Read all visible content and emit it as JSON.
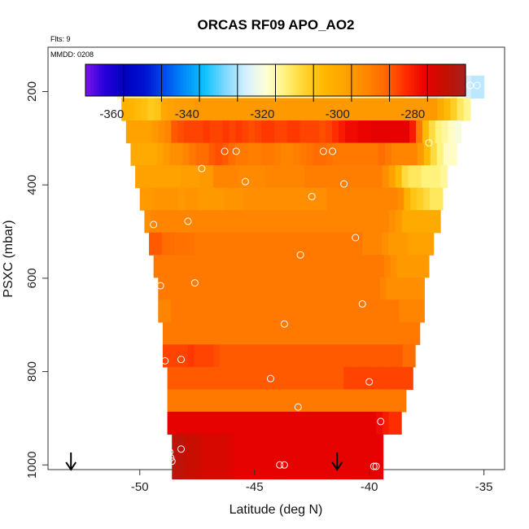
{
  "chart_data": {
    "type": "heatmap",
    "title": "ORCAS RF09 APO_AO2",
    "annotations": {
      "flights": "Flts: 9",
      "date": "MMDD: 0208"
    },
    "xlabel": "Latitude (deg N)",
    "ylabel": "PSXC (mbar)",
    "xlim": [
      -54,
      -34.1
    ],
    "ylim": [
      1010,
      105
    ],
    "x_ticks": [
      -50,
      -45,
      -40,
      -35
    ],
    "y_ticks": [
      200,
      400,
      600,
      800,
      1000
    ],
    "colorbar": {
      "range": [
        -367,
        -266
      ],
      "ticks": [
        -360,
        -340,
        -320,
        -300,
        -280
      ],
      "colors": [
        "#7a14e8",
        "#2400d8",
        "#0000c0",
        "#0014d2",
        "#0050f0",
        "#0090fa",
        "#10c4ff",
        "#80d8ff",
        "#d4efff",
        "#ffffd8",
        "#fff27a",
        "#ffd22a",
        "#ffb600",
        "#ffa200",
        "#ff8800",
        "#ff6800",
        "#ff2c00",
        "#ea0000",
        "#c21000",
        "#a82020"
      ],
      "separator_count": 10
    },
    "bands": [
      {
        "p": 190,
        "lat_min": -51,
        "lat_max": -35,
        "values": [
          -316,
          -316,
          -316,
          -316,
          -316,
          -316,
          -316,
          -316,
          -316,
          -316,
          -316,
          -316,
          -316,
          -316,
          -316,
          -316,
          -316,
          -316,
          -316,
          -316,
          -316,
          -316,
          -316,
          -316,
          -316,
          -316,
          -316,
          -316,
          -316,
          -316,
          -316,
          -316,
          -316,
          -316,
          -316,
          -316,
          -316,
          -316,
          -316,
          -316,
          -316,
          -316,
          -316,
          -316,
          -318,
          -320,
          -322,
          -324,
          -324,
          -322,
          -318,
          -316,
          -320,
          -324,
          -326,
          -326
        ]
      },
      {
        "p": 238,
        "lat_min": -50.8,
        "lat_max": -35.6,
        "values": [
          -302,
          -303,
          -304,
          -305,
          -307,
          -306,
          -299,
          -298,
          -297,
          -297,
          -297,
          -296,
          -296,
          -296,
          -296,
          -296,
          -296,
          -296,
          -296,
          -296,
          -296,
          -296,
          -296,
          -296,
          -296,
          -296,
          -296,
          -296,
          -296,
          -296,
          -296,
          -296,
          -296,
          -296,
          -296,
          -296,
          -296,
          -296,
          -296,
          -296,
          -296,
          -296,
          -296,
          -296,
          -296,
          -296,
          -296,
          -296,
          -300,
          -304,
          -308,
          -312,
          -315
        ]
      },
      {
        "p": 286,
        "lat_min": -50.6,
        "lat_max": -36,
        "values": [
          -298,
          -298,
          -298,
          -298,
          -296,
          -294,
          -292,
          -286,
          -285,
          -284,
          -284,
          -284,
          -283,
          -284,
          -284,
          -283,
          -284,
          -283,
          -284,
          -285,
          -284,
          -283,
          -283,
          -284,
          -284,
          -283,
          -283,
          -284,
          -284,
          -284,
          -285,
          -284,
          -282,
          -280,
          -278,
          -278,
          -277,
          -277,
          -276,
          -276,
          -276,
          -276,
          -276,
          -276,
          -280,
          -290,
          -304,
          -310,
          -314,
          -316,
          -318,
          -320
        ]
      },
      {
        "p": 334,
        "lat_min": -50.4,
        "lat_max": -36.2,
        "values": [
          -300,
          -300,
          -300,
          -300,
          -298,
          -296,
          -294,
          -294,
          -292,
          -290,
          -288,
          -288,
          -286,
          -285,
          -286,
          -288,
          -290,
          -290,
          -291,
          -291,
          -290,
          -290,
          -291,
          -292,
          -292,
          -291,
          -290,
          -289,
          -288,
          -288,
          -289,
          -290,
          -290,
          -290,
          -290,
          -290,
          -290,
          -290,
          -288,
          -290,
          -292,
          -292,
          -292,
          -292,
          -296,
          -304,
          -310,
          -314,
          -318,
          -318
        ]
      },
      {
        "p": 382,
        "lat_min": -50.2,
        "lat_max": -36.6,
        "values": [
          -298,
          -298,
          -298,
          -298,
          -298,
          -298,
          -298,
          -297,
          -297,
          -297,
          -296,
          -296,
          -292,
          -292,
          -292,
          -292,
          -293,
          -293,
          -293,
          -293,
          -292,
          -292,
          -292,
          -292,
          -292,
          -292,
          -291,
          -291,
          -291,
          -291,
          -291,
          -291,
          -291,
          -291,
          -291,
          -291,
          -291,
          -291,
          -294,
          -298,
          -304,
          -310,
          -312,
          -312,
          -314,
          -314,
          -314,
          -316
        ]
      },
      {
        "p": 430,
        "lat_min": -50,
        "lat_max": -36.8,
        "values": [
          -296,
          -296,
          -295,
          -295,
          -295,
          -295,
          -296,
          -295,
          -295,
          -296,
          -296,
          -296,
          -296,
          -295,
          -295,
          -295,
          -294,
          -294,
          -294,
          -294,
          -294,
          -294,
          -294,
          -294,
          -294,
          -294,
          -294,
          -294,
          -294,
          -292,
          -292,
          -292,
          -292,
          -292,
          -292,
          -292,
          -292,
          -292,
          -292,
          -292,
          -294,
          -302,
          -306,
          -308,
          -310,
          -312,
          -312
        ]
      },
      {
        "p": 478,
        "lat_min": -49.8,
        "lat_max": -36.9,
        "values": [
          -294,
          -292,
          -292,
          -292,
          -292,
          -292,
          -292,
          -292,
          -292,
          -292,
          -292,
          -292,
          -292,
          -292,
          -292,
          -292,
          -292,
          -292,
          -292,
          -292,
          -292,
          -292,
          -292,
          -292,
          -292,
          -292,
          -292,
          -292,
          -292,
          -292,
          -292,
          -292,
          -292,
          -292,
          -292,
          -292,
          -292,
          -292,
          -294,
          -296,
          -300,
          -300,
          -300,
          -300,
          -300,
          -300
        ]
      },
      {
        "p": 526,
        "lat_min": -49.6,
        "lat_max": -37.2,
        "values": [
          -286,
          -286,
          -288,
          -288,
          -289,
          -289,
          -289,
          -290,
          -290,
          -290,
          -290,
          -290,
          -290,
          -290,
          -290,
          -290,
          -290,
          -290,
          -290,
          -290,
          -290,
          -290,
          -290,
          -290,
          -290,
          -290,
          -290,
          -290,
          -290,
          -290,
          -290,
          -290,
          -290,
          -292,
          -292,
          -292,
          -294,
          -296,
          -296,
          -296,
          -298,
          -298,
          -298,
          -298
        ]
      },
      {
        "p": 574,
        "lat_min": -49.4,
        "lat_max": -37.4,
        "values": [
          -290,
          -290,
          -290,
          -290,
          -290,
          -290,
          -290,
          -290,
          -290,
          -290,
          -290,
          -290,
          -290,
          -290,
          -290,
          -290,
          -290,
          -290,
          -290,
          -290,
          -290,
          -290,
          -290,
          -290,
          -290,
          -290,
          -290,
          -290,
          -290,
          -290,
          -290,
          -290,
          -290,
          -290,
          -290,
          -290,
          -292,
          -294,
          -296,
          -296,
          -296,
          -296,
          -296
        ]
      },
      {
        "p": 622,
        "lat_min": -49.2,
        "lat_max": -37.6,
        "values": [
          -290,
          -290,
          -290,
          -290,
          -290,
          -290,
          -290,
          -290,
          -290,
          -290,
          -290,
          -290,
          -290,
          -290,
          -290,
          -290,
          -290,
          -290,
          -290,
          -290,
          -290,
          -290,
          -290,
          -290,
          -290,
          -290,
          -290,
          -290,
          -290,
          -290,
          -290,
          -290,
          -290,
          -290,
          -290,
          -292,
          -294,
          -294,
          -294,
          -294,
          -294,
          -294
        ]
      },
      {
        "p": 670,
        "lat_min": -49.2,
        "lat_max": -37.6,
        "values": [
          -292,
          -292,
          -290,
          -290,
          -290,
          -290,
          -290,
          -290,
          -290,
          -290,
          -290,
          -290,
          -290,
          -290,
          -290,
          -290,
          -290,
          -290,
          -290,
          -290,
          -290,
          -290,
          -290,
          -290,
          -290,
          -290,
          -290,
          -290,
          -290,
          -290,
          -290,
          -290,
          -290,
          -290,
          -290,
          -290,
          -290,
          -290,
          -292,
          -292,
          -292,
          -292
        ]
      },
      {
        "p": 718,
        "lat_min": -49,
        "lat_max": -37.8,
        "values": [
          -290,
          -290,
          -290,
          -290,
          -290,
          -290,
          -290,
          -290,
          -290,
          -290,
          -290,
          -290,
          -290,
          -290,
          -290,
          -290,
          -290,
          -290,
          -290,
          -290,
          -290,
          -290,
          -290,
          -290,
          -290,
          -290,
          -290,
          -290,
          -290,
          -290,
          -290,
          -290,
          -290,
          -290,
          -290,
          -290,
          -290,
          -290,
          -290,
          -290
        ]
      },
      {
        "p": 766,
        "lat_min": -49,
        "lat_max": -38,
        "values": [
          -284,
          -284,
          -284,
          -284,
          -283,
          -284,
          -284,
          -284,
          -285,
          -286,
          -286,
          -286,
          -286,
          -286,
          -286,
          -286,
          -286,
          -286,
          -286,
          -286,
          -286,
          -286,
          -286,
          -286,
          -286,
          -286,
          -286,
          -286,
          -286,
          -286,
          -286,
          -286,
          -286,
          -286,
          -286,
          -286,
          -286,
          -286,
          -288,
          -288
        ]
      },
      {
        "p": 814,
        "lat_min": -48.8,
        "lat_max": -38.1,
        "values": [
          -286,
          -286,
          -286,
          -286,
          -286,
          -286,
          -286,
          -286,
          -286,
          -286,
          -286,
          -286,
          -286,
          -286,
          -286,
          -286,
          -286,
          -286,
          -286,
          -286,
          -286,
          -286,
          -286,
          -286,
          -286,
          -286,
          -286,
          -286,
          -284,
          -284,
          -284,
          -284,
          -284,
          -284,
          -284,
          -284,
          -284,
          -284,
          -284
        ]
      },
      {
        "p": 862,
        "lat_min": -48.8,
        "lat_max": -38.4,
        "values": [
          -290,
          -290,
          -290,
          -290,
          -290,
          -290,
          -290,
          -290,
          -290,
          -290,
          -290,
          -290,
          -290,
          -290,
          -290,
          -290,
          -290,
          -290,
          -290,
          -290,
          -290,
          -290,
          -290,
          -290,
          -290,
          -290,
          -290,
          -290,
          -290,
          -290,
          -290,
          -290,
          -290,
          -290,
          -290,
          -290,
          -290,
          -290
        ]
      },
      {
        "p": 910,
        "lat_min": -48.8,
        "lat_max": -38.6,
        "values": [
          -276,
          -276,
          -276,
          -276,
          -276,
          -276,
          -276,
          -276,
          -276,
          -276,
          -276,
          -276,
          -276,
          -276,
          -276,
          -276,
          -276,
          -276,
          -276,
          -276,
          -276,
          -276,
          -276,
          -276,
          -276,
          -276,
          -276,
          -276,
          -276,
          -276,
          -276,
          -276,
          -276,
          -278,
          -280,
          -282,
          -282
        ]
      },
      {
        "p": 958,
        "lat_min": -48.6,
        "lat_max": -39.4,
        "values": [
          -270,
          -270,
          -272,
          -272,
          -273,
          -274,
          -274,
          -274,
          -274,
          -275,
          -276,
          -276,
          -276,
          -276,
          -276,
          -276,
          -276,
          -276,
          -276,
          -276,
          -276,
          -276,
          -276,
          -276,
          -276,
          -276,
          -276,
          -276,
          -276,
          -276,
          -276,
          -276,
          -276,
          -276
        ]
      },
      {
        "p": 1006,
        "lat_min": -48.6,
        "lat_max": -39.4,
        "values": [
          -270,
          -270,
          -272,
          -272,
          -273,
          -274,
          -274,
          -274,
          -274,
          -275,
          -276,
          -276,
          -276,
          -276,
          -276,
          -276,
          -276,
          -276,
          -276,
          -276,
          -276,
          -276,
          -276,
          -276,
          -276,
          -276,
          -276,
          -276,
          -276,
          -276,
          -276,
          -276,
          -276,
          -276
        ]
      }
    ],
    "sample_points": [
      {
        "x": -50.9,
        "y": 188
      },
      {
        "x": -36.8,
        "y": 200
      },
      {
        "x": -36.3,
        "y": 187
      },
      {
        "x": -35.9,
        "y": 187
      },
      {
        "x": -35.6,
        "y": 187
      },
      {
        "x": -35.3,
        "y": 187
      },
      {
        "x": -37.4,
        "y": 310
      },
      {
        "x": -46.3,
        "y": 328
      },
      {
        "x": -45.8,
        "y": 328
      },
      {
        "x": -42.0,
        "y": 328
      },
      {
        "x": -41.6,
        "y": 328
      },
      {
        "x": -47.3,
        "y": 365
      },
      {
        "x": -45.4,
        "y": 393
      },
      {
        "x": -41.1,
        "y": 398
      },
      {
        "x": -42.5,
        "y": 425
      },
      {
        "x": -49.4,
        "y": 485
      },
      {
        "x": -47.9,
        "y": 478
      },
      {
        "x": -40.6,
        "y": 513
      },
      {
        "x": -43.0,
        "y": 550
      },
      {
        "x": -47.6,
        "y": 610
      },
      {
        "x": -49.1,
        "y": 616
      },
      {
        "x": -40.3,
        "y": 655
      },
      {
        "x": -43.7,
        "y": 698
      },
      {
        "x": -48.9,
        "y": 777
      },
      {
        "x": -48.2,
        "y": 774
      },
      {
        "x": -44.3,
        "y": 815
      },
      {
        "x": -40.0,
        "y": 822
      },
      {
        "x": -43.1,
        "y": 876
      },
      {
        "x": -39.5,
        "y": 907
      },
      {
        "x": -48.7,
        "y": 972
      },
      {
        "x": -48.2,
        "y": 966
      },
      {
        "x": -48.65,
        "y": 985
      },
      {
        "x": -48.6,
        "y": 992
      },
      {
        "x": -43.9,
        "y": 1000
      },
      {
        "x": -43.7,
        "y": 1000
      },
      {
        "x": -39.8,
        "y": 1003
      },
      {
        "x": -39.7,
        "y": 1003
      }
    ],
    "arrows": [
      {
        "x": -53
      },
      {
        "x": -41.4
      }
    ]
  }
}
